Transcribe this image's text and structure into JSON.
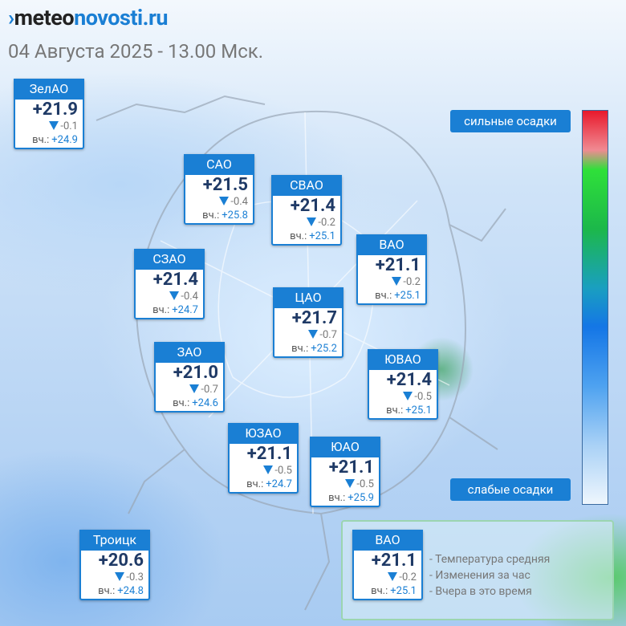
{
  "header": {
    "logo_part1": "meteo",
    "logo_part2": "novosti.ru",
    "date": "04 Августа 2025 - 13.00 Мск."
  },
  "labels": {
    "yesterday": "вч.:"
  },
  "districts": [
    {
      "name": "ЗелАО",
      "temp": "+21.9",
      "change": "-0.1",
      "yesterday": "+24.9"
    },
    {
      "name": "САО",
      "temp": "+21.5",
      "change": "-0.4",
      "yesterday": "+25.8"
    },
    {
      "name": "СВАО",
      "temp": "+21.4",
      "change": "-0.2",
      "yesterday": "+25.1"
    },
    {
      "name": "ВАО",
      "temp": "+21.1",
      "change": "-0.2",
      "yesterday": "+25.1"
    },
    {
      "name": "СЗАО",
      "temp": "+21.4",
      "change": "-0.4",
      "yesterday": "+24.7"
    },
    {
      "name": "ЦАО",
      "temp": "+21.7",
      "change": "-0.7",
      "yesterday": "+25.2"
    },
    {
      "name": "ЗАО",
      "temp": "+21.0",
      "change": "-0.7",
      "yesterday": "+24.6"
    },
    {
      "name": "ЮВАО",
      "temp": "+21.4",
      "change": "-0.5",
      "yesterday": "+25.1"
    },
    {
      "name": "ЮЗАО",
      "temp": "+21.1",
      "change": "-0.5",
      "yesterday": "+24.7"
    },
    {
      "name": "ЮАО",
      "temp": "+21.1",
      "change": "-0.5",
      "yesterday": "+25.9"
    },
    {
      "name": "Троицк",
      "temp": "+20.6",
      "change": "-0.3",
      "yesterday": "+24.8"
    }
  ],
  "scale": {
    "top_label": "сильные осадки",
    "bottom_label": "слабые осадки"
  },
  "legend": {
    "card": {
      "name": "ВАО",
      "temp": "+21.1",
      "change": "-0.2",
      "yesterday": "+25.1"
    },
    "items": [
      "- Температура средняя",
      "- Изменения за час",
      "- Вчера в это время"
    ]
  }
}
